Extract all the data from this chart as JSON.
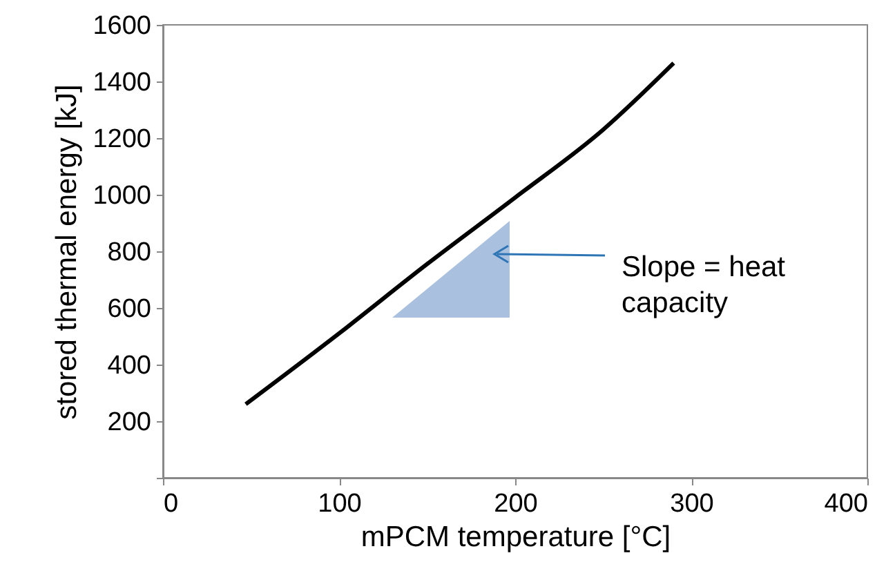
{
  "chart_data": {
    "type": "line",
    "xlabel": "mPCM temperature [°C]",
    "ylabel": "stored thermal energy [kJ]",
    "series": [
      {
        "color": "#000000",
        "x": [
          47,
          100,
          150,
          200,
          250,
          290
        ],
        "values": [
          260,
          510,
          755,
          990,
          1230,
          1465
        ]
      }
    ],
    "xlim": [
      0,
      400
    ],
    "xticks": [
      0,
      100,
      200,
      300,
      400
    ],
    "ylim": [
      0,
      1600
    ],
    "yticks": [
      {
        "value": 0,
        "label": null
      },
      200,
      400,
      600,
      800,
      1000,
      1200,
      1400,
      1600
    ],
    "annotations": [
      "Slope = heat capacity"
    ],
    "grid": false,
    "marker": "none"
  }
}
